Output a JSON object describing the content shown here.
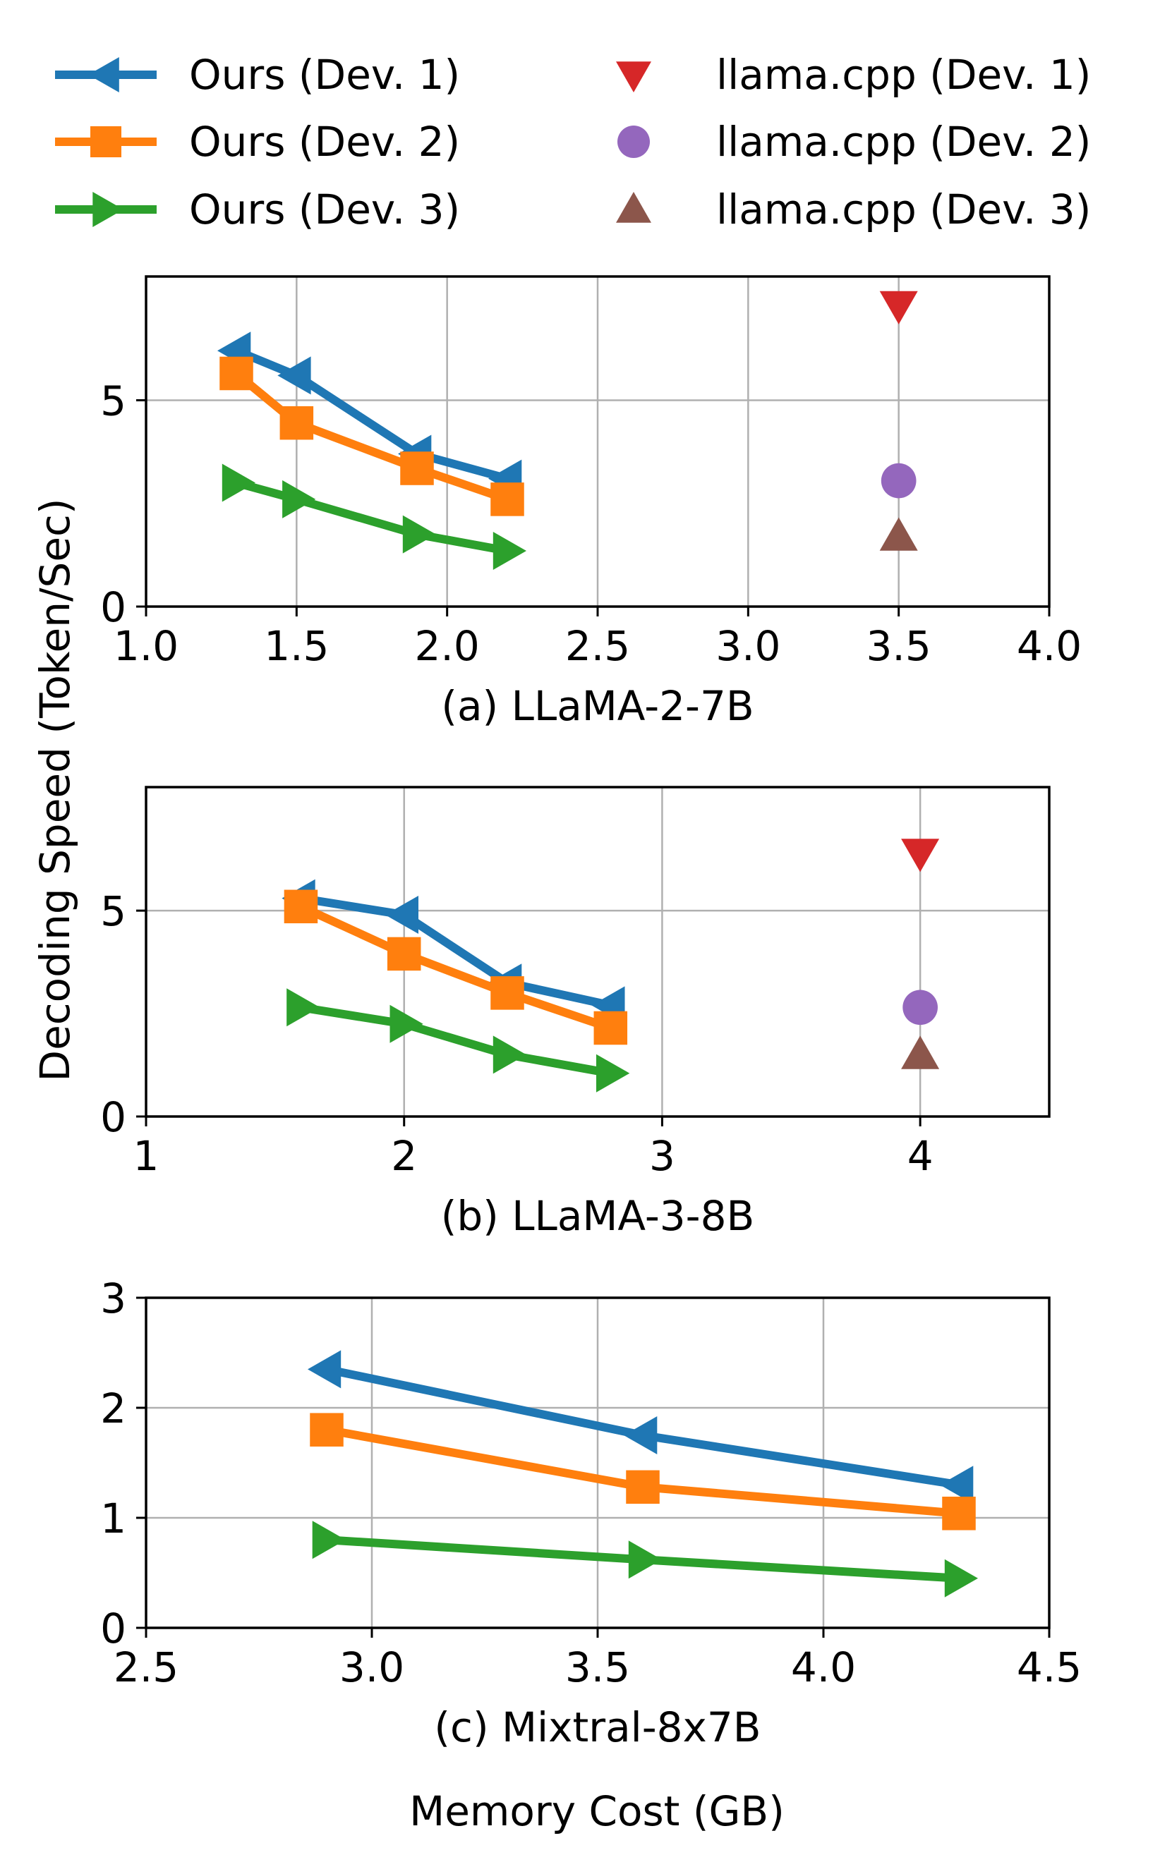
{
  "figure": {
    "ylabel": "Decoding Speed (Token/Sec)",
    "xlabel": "Memory Cost (GB)"
  },
  "legend": [
    {
      "key": "ours1",
      "label": "Ours (Dev. 1)",
      "color": "#1f77b4",
      "marker": "triangle-left",
      "line": true
    },
    {
      "key": "ours2",
      "label": "Ours (Dev. 2)",
      "color": "#ff7f0e",
      "marker": "square",
      "line": true
    },
    {
      "key": "ours3",
      "label": "Ours (Dev. 3)",
      "color": "#2ca02c",
      "marker": "triangle-right",
      "line": true
    },
    {
      "key": "llama1",
      "label": "llama.cpp (Dev. 1)",
      "color": "#d62728",
      "marker": "triangle-down",
      "line": false
    },
    {
      "key": "llama2",
      "label": "llama.cpp (Dev. 2)",
      "color": "#9467bd",
      "marker": "circle",
      "line": false
    },
    {
      "key": "llama3",
      "label": "llama.cpp (Dev. 3)",
      "color": "#8c564b",
      "marker": "triangle-up",
      "line": false
    }
  ],
  "chart_data": [
    {
      "type": "line",
      "title": "(a) LLaMA-2-7B",
      "xlabel": "Memory Cost (GB)",
      "ylabel": "Decoding Speed (Token/Sec)",
      "xlim": [
        1.0,
        4.0
      ],
      "ylim": [
        0,
        8
      ],
      "xticks": [
        1.0,
        1.5,
        2.0,
        2.5,
        3.0,
        3.5,
        4.0
      ],
      "xtick_labels": [
        "1.0",
        "1.5",
        "2.0",
        "2.5",
        "3.0",
        "3.5",
        "4.0"
      ],
      "yticks": [
        0,
        5
      ],
      "ytick_labels": [
        "0",
        "5"
      ],
      "grid": true,
      "series": [
        {
          "key": "ours1",
          "x": [
            1.3,
            1.5,
            1.9,
            2.2
          ],
          "y": [
            6.2,
            5.6,
            3.7,
            3.1
          ]
        },
        {
          "key": "ours2",
          "x": [
            1.3,
            1.5,
            1.9,
            2.2
          ],
          "y": [
            5.65,
            4.45,
            3.35,
            2.6
          ]
        },
        {
          "key": "ours3",
          "x": [
            1.3,
            1.5,
            1.9,
            2.2
          ],
          "y": [
            3.0,
            2.6,
            1.75,
            1.35
          ]
        },
        {
          "key": "llama1",
          "x": [
            3.5
          ],
          "y": [
            7.3
          ]
        },
        {
          "key": "llama2",
          "x": [
            3.5
          ],
          "y": [
            3.05
          ]
        },
        {
          "key": "llama3",
          "x": [
            3.5
          ],
          "y": [
            1.7
          ]
        }
      ]
    },
    {
      "type": "line",
      "title": "(b) LLaMA-3-8B",
      "xlabel": "Memory Cost (GB)",
      "ylabel": "Decoding Speed (Token/Sec)",
      "xlim": [
        1.0,
        4.5
      ],
      "ylim": [
        0,
        8
      ],
      "xticks": [
        1,
        2,
        3,
        4
      ],
      "xtick_labels": [
        "1",
        "2",
        "3",
        "4"
      ],
      "yticks": [
        0,
        5
      ],
      "ytick_labels": [
        "0",
        "5"
      ],
      "grid": true,
      "series": [
        {
          "key": "ours1",
          "x": [
            1.6,
            2.0,
            2.4,
            2.8
          ],
          "y": [
            5.3,
            4.9,
            3.25,
            2.7
          ]
        },
        {
          "key": "ours2",
          "x": [
            1.6,
            2.0,
            2.4,
            2.8
          ],
          "y": [
            5.1,
            3.95,
            3.0,
            2.15
          ]
        },
        {
          "key": "ours3",
          "x": [
            1.6,
            2.0,
            2.4,
            2.8
          ],
          "y": [
            2.65,
            2.25,
            1.5,
            1.05
          ]
        },
        {
          "key": "llama1",
          "x": [
            4.0
          ],
          "y": [
            6.4
          ]
        },
        {
          "key": "llama2",
          "x": [
            4.0
          ],
          "y": [
            2.65
          ]
        },
        {
          "key": "llama3",
          "x": [
            4.0
          ],
          "y": [
            1.5
          ]
        }
      ]
    },
    {
      "type": "line",
      "title": "(c) Mixtral-8x7B",
      "xlabel": "Memory Cost (GB)",
      "ylabel": "Decoding Speed (Token/Sec)",
      "xlim": [
        2.5,
        4.5
      ],
      "ylim": [
        0,
        3
      ],
      "xticks": [
        2.5,
        3.0,
        3.5,
        4.0,
        4.5
      ],
      "xtick_labels": [
        "2.5",
        "3.0",
        "3.5",
        "4.0",
        "4.5"
      ],
      "yticks": [
        0,
        1,
        2,
        3
      ],
      "ytick_labels": [
        "0",
        "1",
        "2",
        "3"
      ],
      "grid": true,
      "series": [
        {
          "key": "ours1",
          "x": [
            2.9,
            3.6,
            4.3
          ],
          "y": [
            2.35,
            1.75,
            1.3
          ]
        },
        {
          "key": "ours2",
          "x": [
            2.9,
            3.6,
            4.3
          ],
          "y": [
            1.8,
            1.28,
            1.04
          ]
        },
        {
          "key": "ours3",
          "x": [
            2.9,
            3.6,
            4.3
          ],
          "y": [
            0.8,
            0.62,
            0.45
          ]
        }
      ]
    }
  ]
}
